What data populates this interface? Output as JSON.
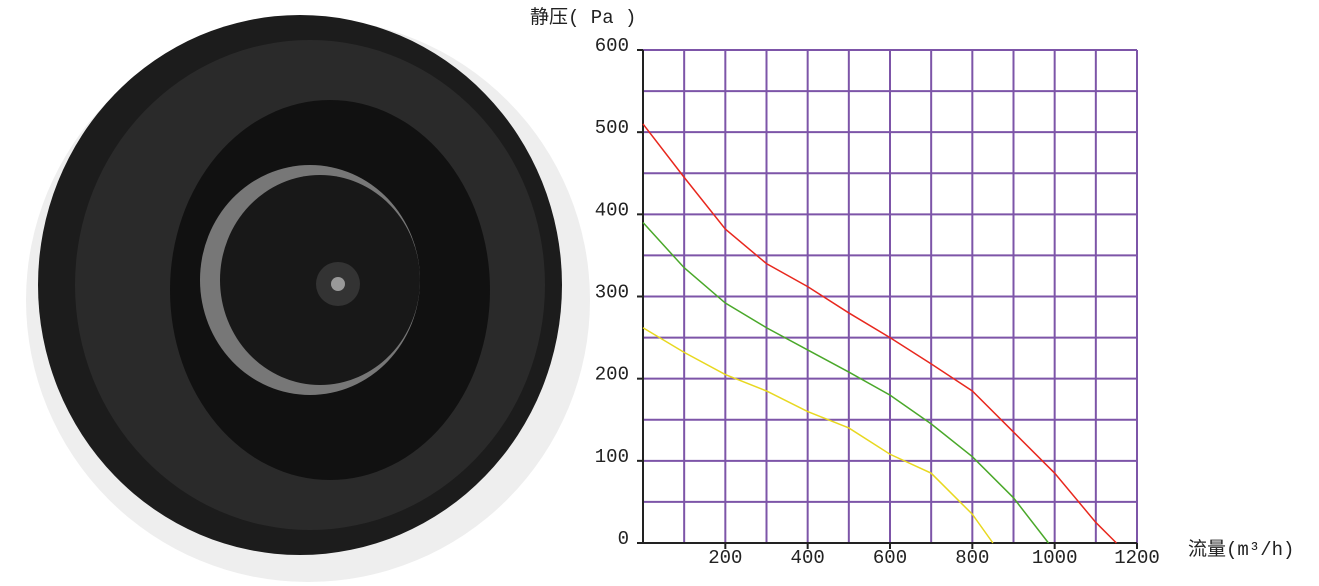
{
  "chart_data": {
    "type": "line",
    "y_label": "静压( Pa )",
    "x_label": "流量(m³/h)",
    "xlim": [
      0,
      1200
    ],
    "ylim": [
      0,
      600
    ],
    "xticks": [
      200,
      400,
      600,
      800,
      1000,
      1200
    ],
    "yticks": [
      0,
      100,
      200,
      300,
      400,
      500,
      600
    ],
    "x_gridlines": [
      0,
      100,
      200,
      300,
      400,
      500,
      600,
      700,
      800,
      900,
      1000,
      1100,
      1200
    ],
    "y_gridlines": [
      0,
      50,
      100,
      150,
      200,
      250,
      300,
      350,
      400,
      450,
      500,
      550,
      600
    ],
    "grid_color": "#7d55a8",
    "series": [
      {
        "color": "#e8281e",
        "x": [
          0,
          100,
          200,
          300,
          400,
          500,
          600,
          700,
          800,
          900,
          1000,
          1100,
          1150
        ],
        "values": [
          510,
          445,
          382,
          340,
          312,
          280,
          250,
          218,
          185,
          135,
          85,
          25,
          0
        ]
      },
      {
        "color": "#4aa82a",
        "x": [
          0,
          100,
          200,
          300,
          400,
          500,
          600,
          700,
          800,
          900,
          985
        ],
        "values": [
          390,
          335,
          292,
          262,
          235,
          208,
          180,
          145,
          105,
          55,
          0
        ]
      },
      {
        "color": "#e8d820",
        "x": [
          0,
          100,
          200,
          300,
          400,
          500,
          600,
          700,
          800,
          850
        ],
        "values": [
          262,
          232,
          205,
          185,
          160,
          140,
          108,
          85,
          35,
          0
        ]
      }
    ]
  }
}
